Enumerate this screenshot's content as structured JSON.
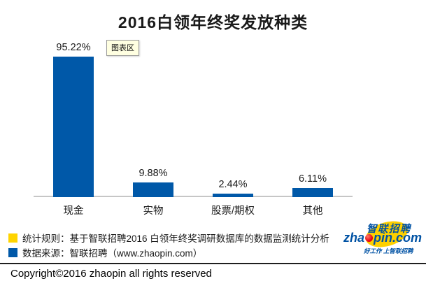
{
  "chart": {
    "title": "2016白领年终奖发放种类",
    "tooltip": "图表区"
  },
  "chart_data": {
    "type": "bar",
    "categories": [
      "现金",
      "实物",
      "股票/期权",
      "其他"
    ],
    "values": [
      95.22,
      9.88,
      2.44,
      6.11
    ],
    "value_labels": [
      "95.22%",
      "9.88%",
      "2.44%",
      "6.11%"
    ],
    "title": "2016白领年终奖发放种类",
    "xlabel": "",
    "ylabel": "",
    "ylim": [
      0,
      100
    ],
    "grid": false,
    "legend": "none",
    "bar_color": "#0058a8",
    "axis_color": "#c6c6c6"
  },
  "notes": [
    {
      "swatch_color": "#ffd400",
      "text": "统计规则：基于智联招聘2016 白领年终奖调研数据库的数据监测统计分析"
    },
    {
      "swatch_color": "#0058a8",
      "text": "数据来源：智联招聘（www.zhaopin.com）"
    }
  ],
  "logo": {
    "brand_cn": "智联招聘",
    "brand_en_prefix": "zha",
    "brand_en_suffix": "pin.com",
    "tagline": "好工作 上智联招聘",
    "colors": {
      "blue": "#0052a4",
      "yellow": "#fdd000",
      "red": "#e60012"
    }
  },
  "footer": {
    "copyright": "Copyright©2016 zhaopin all rights reserved"
  }
}
